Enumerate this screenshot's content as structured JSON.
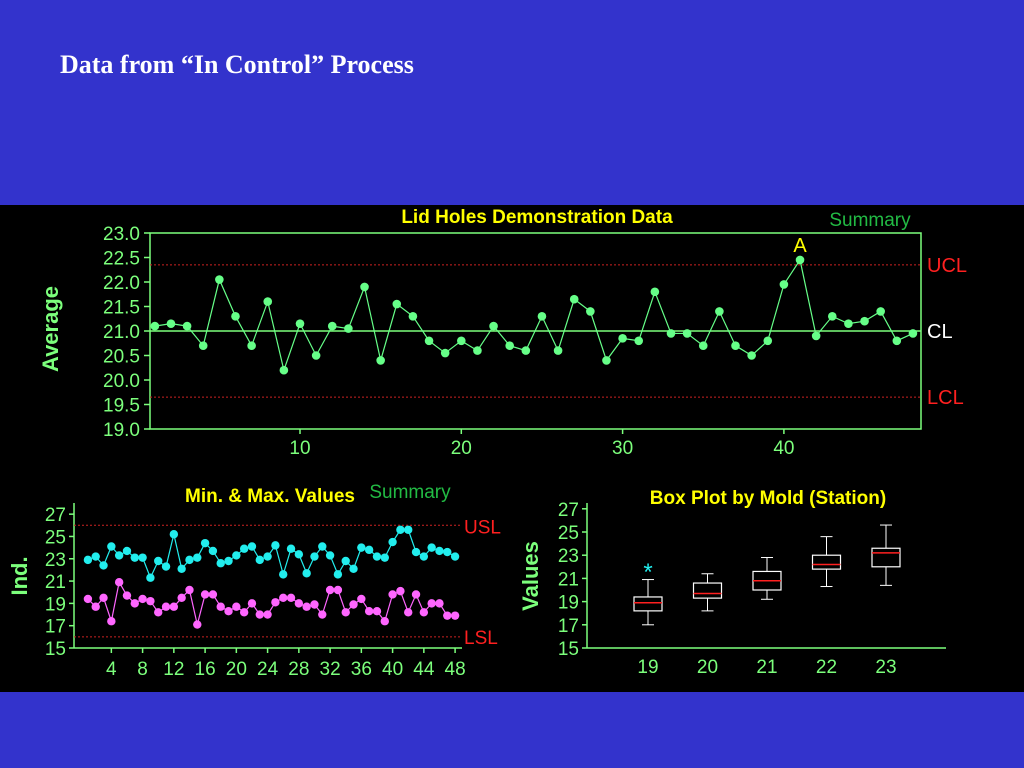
{
  "slide": {
    "title": "Data from “In Control” Process"
  },
  "colors": {
    "background": "#3333cc",
    "panel": "#000000",
    "axis": "#7cff7c",
    "point": "#66ff88",
    "title": "#ffff00",
    "limit_label": "#ff2020",
    "limit_line": "#cc2222",
    "max_series": "#22eeee",
    "min_series": "#ff66ff",
    "median": "#ff2020"
  },
  "chart_data": [
    {
      "type": "line",
      "title": "Lid Holes Demonstration Data",
      "corner_label": "Summary",
      "ylabel": "Average",
      "ylim": [
        19.0,
        23.0
      ],
      "y_ticks": [
        "23.0",
        "22.5",
        "22.0",
        "21.5",
        "21.0",
        "20.5",
        "20.0",
        "19.5",
        "19.0"
      ],
      "x_ticks": [
        "10",
        "20",
        "30",
        "40"
      ],
      "x_tick_values": [
        10,
        20,
        30,
        40
      ],
      "xlim": [
        0.7,
        48.5
      ],
      "x": [
        1,
        2,
        3,
        4,
        5,
        6,
        7,
        8,
        9,
        10,
        11,
        12,
        13,
        14,
        15,
        16,
        17,
        18,
        19,
        20,
        21,
        22,
        23,
        24,
        25,
        26,
        27,
        28,
        29,
        30,
        31,
        32,
        33,
        34,
        35,
        36,
        37,
        38,
        39,
        40,
        41,
        42,
        43,
        44,
        45,
        46,
        47,
        48
      ],
      "series": [
        {
          "values": [
            21.1,
            21.15,
            21.1,
            20.7,
            22.05,
            21.3,
            20.7,
            21.6,
            20.2,
            21.15,
            20.5,
            21.1,
            21.05,
            21.9,
            20.4,
            21.55,
            21.3,
            20.8,
            20.55,
            20.8,
            20.6,
            21.1,
            20.7,
            20.6,
            21.3,
            20.6,
            21.65,
            21.4,
            20.4,
            20.85,
            20.8,
            21.8,
            20.95,
            20.95,
            20.7,
            21.4,
            20.7,
            20.5,
            20.8,
            21.95,
            22.45,
            20.9,
            21.3,
            21.15,
            21.2,
            21.4,
            20.8,
            20.95
          ]
        }
      ],
      "reference_lines": [
        {
          "label": "UCL",
          "value": 22.35
        },
        {
          "label": "CL",
          "value": 21.0
        },
        {
          "label": "LCL",
          "value": 19.65
        }
      ],
      "annotations": [
        {
          "label": "A",
          "x": 41
        }
      ],
      "grid": false
    },
    {
      "type": "line",
      "title": "Min. & Max. Values",
      "corner_label": "Summary",
      "ylabel": "Ind.",
      "ylim": [
        15,
        28
      ],
      "y_ticks": [
        "27",
        "25",
        "23",
        "21",
        "19",
        "17",
        "15"
      ],
      "y_tick_values": [
        27,
        25,
        23,
        21,
        19,
        17,
        15
      ],
      "x_ticks": [
        "4",
        "8",
        "12",
        "16",
        "20",
        "24",
        "28",
        "32",
        "36",
        "40",
        "44",
        "48"
      ],
      "x_tick_values": [
        4,
        8,
        12,
        16,
        20,
        24,
        28,
        32,
        36,
        40,
        44,
        48
      ],
      "xlim": [
        0.5,
        48.5
      ],
      "x": [
        1,
        2,
        3,
        4,
        5,
        6,
        7,
        8,
        9,
        10,
        11,
        12,
        13,
        14,
        15,
        16,
        17,
        18,
        19,
        20,
        21,
        22,
        23,
        24,
        25,
        26,
        27,
        28,
        29,
        30,
        31,
        32,
        33,
        34,
        35,
        36,
        37,
        38,
        39,
        40,
        41,
        42,
        43,
        44,
        45,
        46,
        47,
        48
      ],
      "series": [
        {
          "values": [
            22.9,
            23.2,
            22.4,
            24.1,
            23.3,
            23.7,
            23.1,
            23.1,
            21.3,
            22.8,
            22.3,
            25.2,
            22.1,
            22.9,
            23.1,
            24.4,
            23.7,
            22.6,
            22.8,
            23.3,
            23.9,
            24.1,
            22.9,
            23.2,
            24.2,
            21.6,
            23.9,
            23.4,
            21.7,
            23.2,
            24.1,
            23.3,
            21.6,
            22.8,
            22.1,
            24.0,
            23.8,
            23.2,
            23.1,
            24.5,
            25.6,
            25.6,
            23.6,
            23.2,
            24.0,
            23.7,
            23.6,
            23.2
          ]
        },
        {
          "values": [
            19.4,
            18.7,
            19.5,
            17.4,
            20.9,
            19.7,
            19.0,
            19.4,
            19.2,
            18.2,
            18.7,
            18.7,
            19.5,
            20.2,
            17.1,
            19.8,
            19.8,
            18.7,
            18.3,
            18.7,
            18.2,
            19.0,
            18.0,
            18.0,
            19.1,
            19.5,
            19.5,
            19.0,
            18.7,
            18.9,
            18.0,
            20.2,
            20.2,
            18.2,
            18.9,
            19.4,
            18.3,
            18.3,
            17.4,
            19.8,
            20.1,
            18.2,
            19.8,
            18.2,
            19.0,
            19.0,
            17.9,
            17.9
          ]
        }
      ],
      "reference_lines": [
        {
          "label": "USL",
          "value": 26.0
        },
        {
          "label": "LSL",
          "value": 16.0
        }
      ],
      "grid": false
    },
    {
      "type": "box",
      "title": "Box Plot by Mold (Station)",
      "ylabel": "Values",
      "ylim": [
        15,
        27.5
      ],
      "y_ticks": [
        "27",
        "25",
        "23",
        "21",
        "19",
        "17",
        "15"
      ],
      "y_tick_values": [
        27,
        25,
        23,
        21,
        19,
        17,
        15
      ],
      "categories": [
        "19",
        "20",
        "21",
        "22",
        "23"
      ],
      "boxes": [
        {
          "whisker_low": 17.0,
          "q1": 18.2,
          "median": 18.9,
          "q3": 19.4,
          "whisker_high": 20.9,
          "outliers": [
            21.8
          ]
        },
        {
          "whisker_low": 18.2,
          "q1": 19.3,
          "median": 19.7,
          "q3": 20.6,
          "whisker_high": 21.4,
          "outliers": []
        },
        {
          "whisker_low": 19.2,
          "q1": 20.0,
          "median": 20.8,
          "q3": 21.6,
          "whisker_high": 22.8,
          "outliers": []
        },
        {
          "whisker_low": 20.3,
          "q1": 21.8,
          "median": 22.2,
          "q3": 23.0,
          "whisker_high": 24.6,
          "outliers": []
        },
        {
          "whisker_low": 20.4,
          "q1": 22.0,
          "median": 23.2,
          "q3": 23.6,
          "whisker_high": 25.6,
          "outliers": []
        }
      ],
      "outlier_marker": "*",
      "grid": false
    }
  ]
}
